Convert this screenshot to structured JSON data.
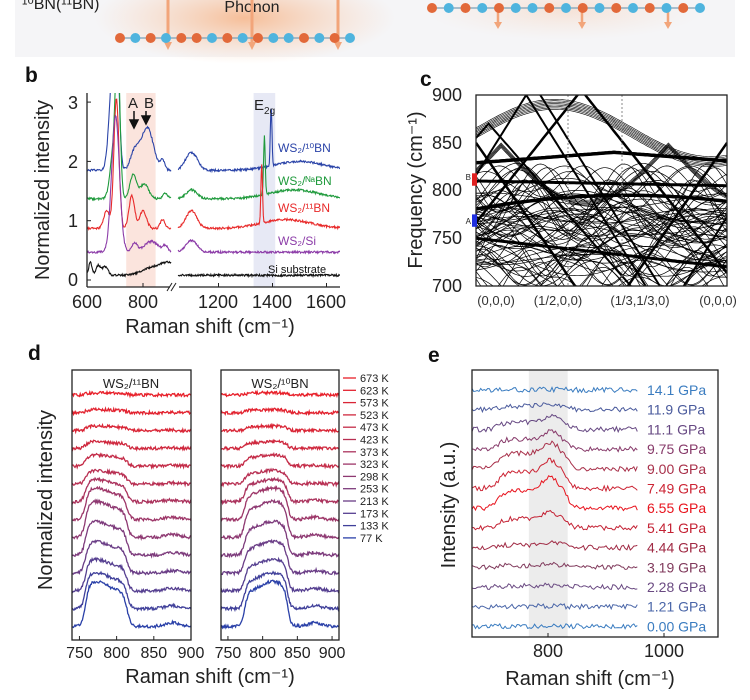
{
  "banner": {
    "isotope_label": "¹⁰BN(¹¹BN)",
    "phonon_label": "Phonon",
    "colors": {
      "boron": "#e2693a",
      "nitrogen": "#4fb4de",
      "arrow": "#f2a57a",
      "glow": "#f8cdb0"
    }
  },
  "panels": {
    "b": "b",
    "c": "c",
    "d": "d",
    "e": "e"
  },
  "chart_data": [
    {
      "panel": "b",
      "type": "line",
      "xlabel": "Raman shift (cm⁻¹)",
      "ylabel": "Normalized intensity",
      "xticks": [
        "600",
        "800",
        "1200",
        "1400",
        "1600"
      ],
      "yticks": [
        "0",
        "1",
        "2",
        "3"
      ],
      "xlim_segments": [
        [
          600,
          900
        ],
        [
          1050,
          1650
        ]
      ],
      "axis_break": true,
      "ylim": [
        0,
        3
      ],
      "annotations": {
        "A": "A",
        "B": "B",
        "E2g_main": "E",
        "E2g_sub": "2g"
      },
      "shaded_regions": [
        {
          "range": [
            740,
            845
          ],
          "color": "#fbe4dd"
        },
        {
          "range": [
            1330,
            1410
          ],
          "color": "#e7e9f5"
        }
      ],
      "series": [
        {
          "name": "WS₂/¹⁰BN",
          "color": "#2b44a8",
          "baseline": 1.85,
          "peaks": [
            [
              690,
              1.4,
              12
            ],
            [
              705,
              2.2,
              9
            ],
            [
              770,
              0.3,
              15
            ],
            [
              815,
              0.72,
              22
            ],
            [
              870,
              0.15,
              8
            ],
            [
              1100,
              0.3,
              22
            ],
            [
              1395,
              1.0,
              3
            ],
            [
              1500,
              0.15,
              90
            ]
          ]
        },
        {
          "name": "WS₂/ᴺᵃBN",
          "color": "#1f9a3c",
          "baseline": 1.37,
          "peaks": [
            [
              695,
              0.8,
              12
            ],
            [
              710,
              2.2,
              8
            ],
            [
              765,
              0.4,
              12
            ],
            [
              805,
              0.25,
              15
            ],
            [
              880,
              0.1,
              8
            ],
            [
              1100,
              0.15,
              20
            ],
            [
              1370,
              1.0,
              3
            ],
            [
              1480,
              0.15,
              90
            ]
          ]
        },
        {
          "name": "WS₂/¹¹BN",
          "color": "#e82a2a",
          "baseline": 0.87,
          "peaks": [
            [
              670,
              0.3,
              10
            ],
            [
              705,
              2.2,
              9
            ],
            [
              760,
              0.55,
              10
            ],
            [
              800,
              0.3,
              12
            ],
            [
              870,
              0.15,
              8
            ],
            [
              1100,
              0.3,
              20
            ],
            [
              1360,
              1.0,
              3
            ],
            [
              1450,
              0.15,
              90
            ]
          ]
        },
        {
          "name": "WS₂/Si",
          "color": "#8c3ca8",
          "baseline": 0.47,
          "peaks": [
            [
              702,
              2.3,
              14
            ],
            [
              770,
              0.15,
              10
            ],
            [
              830,
              0.18,
              25
            ],
            [
              880,
              0.1,
              8
            ],
            [
              1100,
              0.2,
              20
            ]
          ]
        },
        {
          "name": "Si substrate",
          "color": "#111111",
          "baseline": 0.08,
          "peaks": [
            [
              612,
              0.22,
              6
            ],
            [
              640,
              0.16,
              8
            ],
            [
              665,
              0.15,
              10
            ],
            [
              830,
              0.12,
              35
            ],
            [
              895,
              0.2,
              30
            ]
          ]
        }
      ]
    },
    {
      "panel": "c",
      "type": "line",
      "ylabel": "Frequency (cm⁻¹)",
      "ylim": [
        700,
        900
      ],
      "yticks": [
        "900",
        "850",
        "800",
        "750",
        "700"
      ],
      "xticks": [
        "(0,0,0)",
        "(1/2,0,0)",
        "(1/3,1/3,0)",
        "(0,0,0)"
      ],
      "markers": [
        {
          "label": "B",
          "range": [
            805,
            818
          ],
          "color": "#e02020"
        },
        {
          "label": "A",
          "range": [
            762,
            775
          ],
          "color": "#2030e0"
        }
      ]
    },
    {
      "panel": "d",
      "type": "line",
      "xlabel": "Raman shift (cm⁻¹)",
      "ylabel": "Normalized intensity",
      "subplots": [
        {
          "title": "WS₂/¹¹BN",
          "xlim": [
            740,
            900
          ],
          "xticks": [
            "750",
            "800",
            "850",
            "900"
          ],
          "band": [
            758,
            814
          ],
          "peak": 770
        },
        {
          "title": "WS₂/¹⁰BN",
          "xlim": [
            740,
            910
          ],
          "xticks": [
            "750",
            "800",
            "850",
            "900"
          ],
          "band": [
            774,
            836
          ],
          "peak": 815
        }
      ],
      "series": [
        {
          "name": "673 K",
          "color": "#e8202a",
          "amplitude": 0.05
        },
        {
          "name": "623 K",
          "color": "#e2222f",
          "amplitude": 0.07
        },
        {
          "name": "573 K",
          "color": "#d92536",
          "amplitude": 0.1
        },
        {
          "name": "523 K",
          "color": "#cf283e",
          "amplitude": 0.15
        },
        {
          "name": "473 K",
          "color": "#c42c48",
          "amplitude": 0.25
        },
        {
          "name": "423 K",
          "color": "#b82f52",
          "amplitude": 0.3
        },
        {
          "name": "373 K",
          "color": "#ab335d",
          "amplitude": 0.5
        },
        {
          "name": "323 K",
          "color": "#9d3668",
          "amplitude": 0.7
        },
        {
          "name": "298 K",
          "color": "#8e3972",
          "amplitude": 0.8
        },
        {
          "name": "253 K",
          "color": "#7d3b7c",
          "amplitude": 0.75
        },
        {
          "name": "213 K",
          "color": "#6a3d86",
          "amplitude": 0.7
        },
        {
          "name": "173 K",
          "color": "#553f90",
          "amplitude": 0.7
        },
        {
          "name": "133 K",
          "color": "#40409a",
          "amplitude": 0.8
        },
        {
          "name": "77 K",
          "color": "#2a40a8",
          "amplitude": 1.0
        }
      ]
    },
    {
      "panel": "e",
      "type": "line",
      "xlabel": "Raman shift (cm⁻¹)",
      "ylabel": "Intensity (a.u.)",
      "xticks": [
        "800",
        "1000"
      ],
      "xlim": [
        670,
        1093
      ],
      "shaded_region": {
        "range": [
          768,
          835
        ],
        "color": "#ececec"
      },
      "series": [
        {
          "name": "14.1 GPa",
          "color": "#3a7cc0",
          "amplitude": 0.02
        },
        {
          "name": "11.9 GPa",
          "color": "#4a5a9c",
          "amplitude": 0.2
        },
        {
          "name": "11.1 GPa",
          "color": "#664882",
          "amplitude": 0.4
        },
        {
          "name": "9.75 GPa",
          "color": "#873a6a",
          "amplitude": 0.55
        },
        {
          "name": "9.00 GPa",
          "color": "#a8304a",
          "amplitude": 0.85
        },
        {
          "name": "7.49 GPa",
          "color": "#cc2434",
          "amplitude": 0.9
        },
        {
          "name": "6.55 GPa",
          "color": "#e8141e",
          "amplitude": 1.0
        },
        {
          "name": "5.41 GPa",
          "color": "#c42234",
          "amplitude": 0.5
        },
        {
          "name": "4.44 GPa",
          "color": "#a02a44",
          "amplitude": 0.15
        },
        {
          "name": "3.19 GPa",
          "color": "#803a5c",
          "amplitude": 0.1
        },
        {
          "name": "2.28 GPa",
          "color": "#6a4a82",
          "amplitude": 0.05
        },
        {
          "name": "1.21 GPa",
          "color": "#4a66a8",
          "amplitude": 0.02
        },
        {
          "name": "0.00 GPa",
          "color": "#3a7cc0",
          "amplitude": 0.02
        }
      ]
    }
  ]
}
